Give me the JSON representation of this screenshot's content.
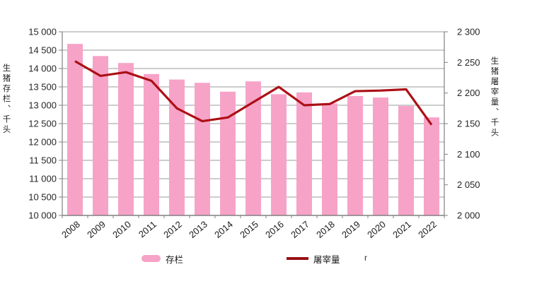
{
  "chart_data": {
    "type": "combo-bar-line",
    "categories": [
      "2008",
      "2009",
      "2010",
      "2011",
      "2012",
      "2013",
      "2014",
      "2015",
      "2016",
      "2017",
      "2018",
      "2019",
      "2020",
      "2021",
      "2022"
    ],
    "series": [
      {
        "name": "存栏",
        "type": "bar",
        "axis": "left",
        "values": [
          14670,
          14340,
          14150,
          13850,
          13700,
          13610,
          13370,
          13650,
          13300,
          13350,
          13050,
          13250,
          13210,
          12980,
          12670
        ]
      },
      {
        "name": "屠宰量",
        "type": "line",
        "axis": "right",
        "values": [
          2252,
          2228,
          2234,
          2220,
          2175,
          2154,
          2160,
          2185,
          2210,
          2180,
          2182,
          2203,
          2204,
          2206,
          2148
        ]
      }
    ],
    "left_axis": {
      "title": "生猪存栏、千头",
      "min": 10000,
      "max": 15000,
      "step": 500,
      "tick_labels": [
        "10 000",
        "10 500",
        "11 000",
        "11 500",
        "12 000",
        "12 500",
        "13 000",
        "13 500",
        "14 000",
        "14 500",
        "15 000"
      ]
    },
    "right_axis": {
      "title": "生猪屠宰量、千头",
      "min": 2000,
      "max": 2300,
      "step": 50,
      "tick_labels": [
        "2 000",
        "2 050",
        "2 100",
        "2 150",
        "2 200",
        "2 250",
        "2 300"
      ]
    },
    "grid": true,
    "legend_position": "bottom",
    "number_format": "space-thousands"
  },
  "legend": {
    "bar_label": "存栏",
    "line_label": "屠宰量",
    "extra_text": "r"
  },
  "colors": {
    "bar": "#f7a3c8",
    "line": "#ac1016",
    "legend_line": "#981014",
    "grid": "#9b9b9b",
    "axis": "#808080",
    "text": "#262626"
  }
}
